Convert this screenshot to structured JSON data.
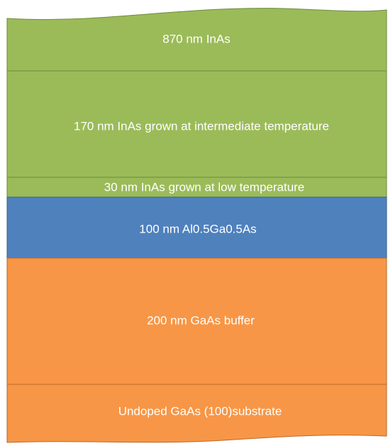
{
  "layers": [
    {
      "label": "870 nm InAs"
    },
    {
      "label": "170 nm InAs grown at intermediate temperature"
    },
    {
      "label": "30 nm InAs grown at low temperature"
    },
    {
      "label": "100 nm Al0.5Ga0.5As"
    },
    {
      "label": "200 nm GaAs buffer"
    },
    {
      "label": "Undoped GaAs (100)substrate"
    }
  ]
}
